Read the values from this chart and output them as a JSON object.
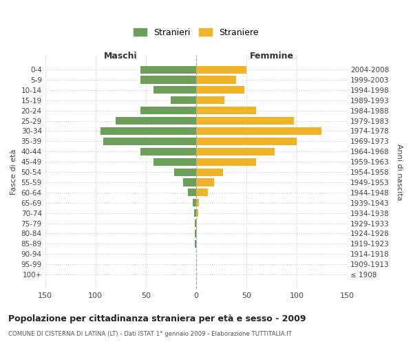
{
  "age_groups": [
    "0-4",
    "5-9",
    "10-14",
    "15-19",
    "20-24",
    "25-29",
    "30-34",
    "35-39",
    "40-44",
    "45-49",
    "50-54",
    "55-59",
    "60-64",
    "65-69",
    "70-74",
    "75-79",
    "80-84",
    "85-89",
    "90-94",
    "95-99",
    "100+"
  ],
  "birth_years": [
    "2004-2008",
    "1999-2003",
    "1994-1998",
    "1989-1993",
    "1984-1988",
    "1979-1983",
    "1974-1978",
    "1969-1973",
    "1964-1968",
    "1959-1963",
    "1954-1958",
    "1949-1953",
    "1944-1948",
    "1939-1943",
    "1934-1938",
    "1929-1933",
    "1924-1928",
    "1919-1923",
    "1914-1918",
    "1909-1913",
    "≤ 1908"
  ],
  "maschi": [
    55,
    55,
    42,
    25,
    55,
    80,
    95,
    92,
    55,
    42,
    22,
    13,
    8,
    3,
    2,
    1,
    1,
    1,
    0,
    0,
    0
  ],
  "femmine": [
    50,
    40,
    48,
    28,
    60,
    97,
    125,
    100,
    78,
    60,
    27,
    18,
    12,
    3,
    2,
    1,
    1,
    1,
    0,
    0,
    0
  ],
  "male_color": "#6d9e5a",
  "female_color": "#f0b429",
  "title": "Popolazione per cittadinanza straniera per età e sesso - 2009",
  "subtitle": "COMUNE DI CISTERNA DI LATINA (LT) - Dati ISTAT 1° gennaio 2009 - Elaborazione TUTTITALIA.IT",
  "legend_male": "Stranieri",
  "legend_female": "Straniere",
  "xlabel_left": "Maschi",
  "xlabel_right": "Femmine",
  "ylabel_left": "Fasce di età",
  "ylabel_right": "Anni di nascita",
  "xlim": 150,
  "bg_color": "#ffffff",
  "grid_color": "#cccccc"
}
